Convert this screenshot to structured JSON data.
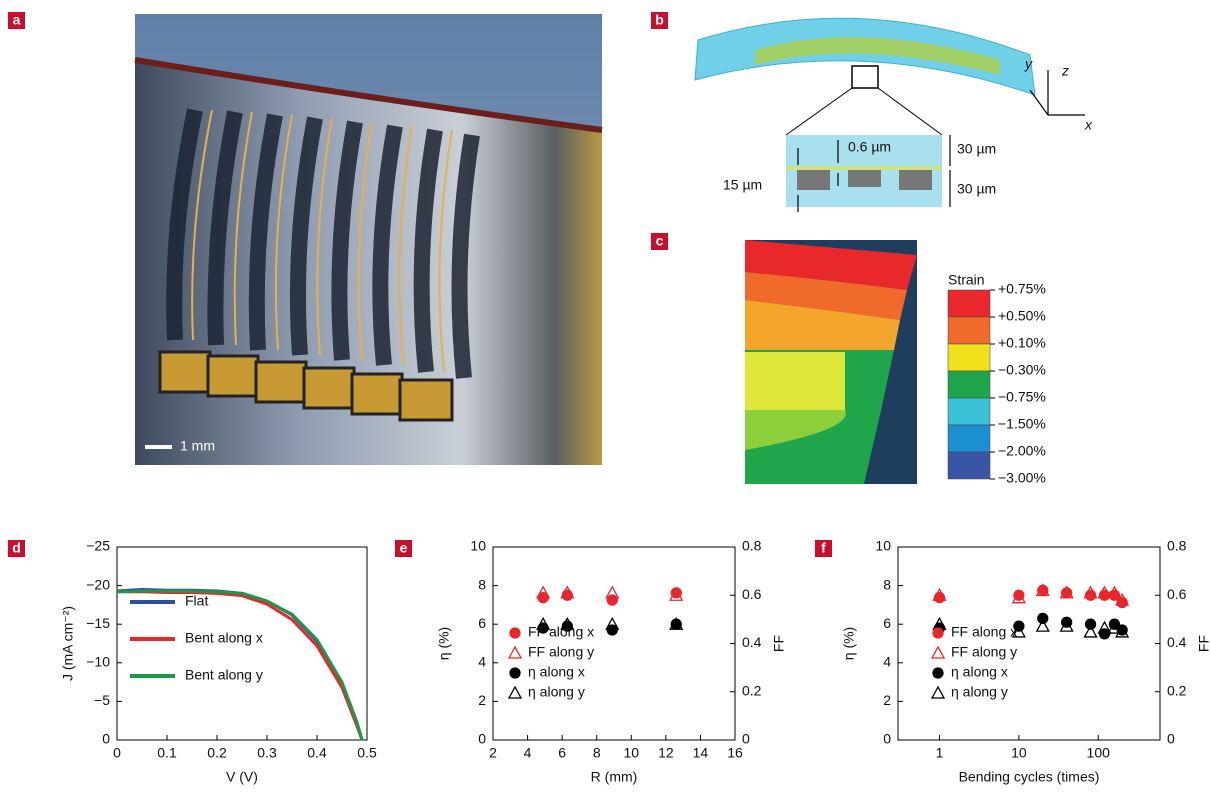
{
  "panels": {
    "a": {
      "label": "a",
      "scale_bar": "1 mm"
    },
    "b": {
      "label": "b",
      "axes": [
        "y",
        "z",
        "x"
      ],
      "dims": [
        "0.6 µm",
        "30 µm",
        "15 µm",
        "30 µm"
      ]
    },
    "c": {
      "label": "c",
      "legend_title": "Strain",
      "levels": [
        "+0.75%",
        "+0.50%",
        "+0.10%",
        "−0.30%",
        "−0.75%",
        "−1.50%",
        "−2.00%",
        "−3.00%"
      ],
      "colors": [
        "#e8282b",
        "#ef6a2b",
        "#efe21c",
        "#1fa64a",
        "#3cc2d8",
        "#1b8fd0",
        "#3a55a4"
      ]
    }
  },
  "chart_data": [
    {
      "type": "line",
      "panel_label": "d",
      "xlabel": "V (V)",
      "ylabel": "J (mA cm⁻²)",
      "x": [
        0,
        0.05,
        0.1,
        0.15,
        0.2,
        0.25,
        0.3,
        0.35,
        0.4,
        0.45,
        0.48,
        0.49
      ],
      "series": [
        {
          "name": "Flat",
          "color": "#2d4fa1",
          "values": [
            -19.3,
            -19.5,
            -19.4,
            -19.4,
            -19.3,
            -19.0,
            -18.0,
            -16.2,
            -12.8,
            -7.2,
            -2.2,
            0
          ]
        },
        {
          "name": "Bent along x",
          "color": "#e8262b",
          "values": [
            -19.2,
            -19.2,
            -19.1,
            -19.1,
            -19.0,
            -18.7,
            -17.6,
            -15.6,
            -12.2,
            -6.8,
            -1.8,
            0
          ]
        },
        {
          "name": "Bent along y",
          "color": "#1a9a48",
          "values": [
            -19.2,
            -19.3,
            -19.3,
            -19.3,
            -19.2,
            -19.0,
            -18.0,
            -16.3,
            -13.0,
            -7.5,
            -2.3,
            0
          ]
        }
      ],
      "xlim": [
        0,
        0.5
      ],
      "xticks": [
        0,
        0.1,
        0.2,
        0.3,
        0.4,
        0.5
      ],
      "ylim": [
        0,
        -25
      ],
      "yticks": [
        0,
        {
          "value": -5,
          "label": "−5"
        },
        {
          "value": -10,
          "label": "−10"
        },
        {
          "value": -15,
          "label": "−15"
        },
        {
          "value": -20,
          "label": "−20"
        },
        {
          "value": -25,
          "label": "−25"
        }
      ],
      "legend": "lower left"
    },
    {
      "type": "scatter",
      "panel_label": "e",
      "xlabel": "R (mm)",
      "ylabel": "η (%)",
      "y2label": "FF",
      "y2color": "#e8262b",
      "x": [
        4.9,
        6.3,
        8.9,
        12.6
      ],
      "series": [
        {
          "name": "FF along x",
          "color": "#e8262b",
          "marker": "circle",
          "filled": true,
          "axis": "y2",
          "values": [
            0.59,
            0.6,
            0.58,
            0.61
          ]
        },
        {
          "name": "FF along y",
          "color": "#e8262b",
          "marker": "triangle",
          "filled": false,
          "axis": "y2",
          "values": [
            0.61,
            0.61,
            0.61,
            0.6
          ]
        },
        {
          "name": "η along x",
          "color": "#000000",
          "marker": "circle",
          "filled": true,
          "values": [
            5.8,
            5.9,
            5.7,
            6.0
          ]
        },
        {
          "name": "η along y",
          "color": "#000000",
          "marker": "triangle",
          "filled": false,
          "values": [
            6.0,
            6.0,
            6.0,
            6.0
          ]
        }
      ],
      "xlim": [
        2,
        16
      ],
      "xticks": [
        2,
        4,
        6,
        8,
        10,
        12,
        14,
        16
      ],
      "ylim": [
        0,
        10
      ],
      "yticks": [
        0,
        2,
        4,
        6,
        8,
        10
      ],
      "y2lim": [
        0,
        0.8
      ],
      "y2ticks": [
        0,
        0.2,
        0.4,
        0.6,
        0.8
      ],
      "legend": "lower left"
    },
    {
      "type": "scatter",
      "panel_label": "f",
      "xlabel": "Bending cycles (times)",
      "ylabel": "η (%)",
      "y2label": "FF",
      "y2color": "#e8262b",
      "xscale": "log",
      "x": [
        1,
        10,
        20,
        40,
        80,
        120,
        160,
        200
      ],
      "series": [
        {
          "name": "FF along x",
          "color": "#e8262b",
          "marker": "circle",
          "filled": true,
          "axis": "y2",
          "values": [
            0.59,
            0.6,
            0.62,
            0.61,
            0.6,
            0.6,
            0.6,
            0.57
          ]
        },
        {
          "name": "FF along y",
          "color": "#e8262b",
          "marker": "triangle",
          "filled": false,
          "axis": "y2",
          "values": [
            0.6,
            0.59,
            0.62,
            0.61,
            0.61,
            0.61,
            0.61,
            0.58
          ]
        },
        {
          "name": "η along x",
          "color": "#000000",
          "marker": "circle",
          "filled": true,
          "values": [
            5.8,
            5.9,
            6.3,
            6.1,
            6.0,
            5.5,
            6.0,
            5.7
          ]
        },
        {
          "name": "η along y",
          "color": "#000000",
          "marker": "triangle",
          "filled": false,
          "values": [
            6.0,
            5.6,
            5.9,
            5.9,
            5.6,
            5.8,
            5.8,
            5.6
          ]
        }
      ],
      "xlim": [
        0.3,
        600
      ],
      "xticks": [
        1,
        10,
        100
      ],
      "ylim": [
        0,
        10
      ],
      "yticks": [
        0,
        2,
        4,
        6,
        8,
        10
      ],
      "y2lim": [
        0,
        0.8
      ],
      "y2ticks": [
        0,
        0.2,
        0.4,
        0.6,
        0.8
      ],
      "legend": "lower left"
    }
  ]
}
